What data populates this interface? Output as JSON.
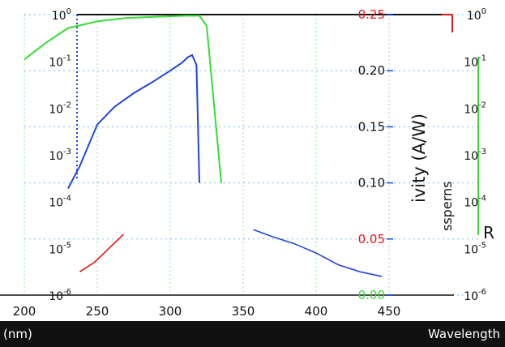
{
  "colors": {
    "responsivity": "#2244dd",
    "green": "#33dd33",
    "red": "#ee1111",
    "blue_axis": "#1144ee",
    "grid_blue": "#77bbee",
    "grid_green": "#88ee88",
    "dark": "#111111"
  },
  "band": {
    "left_text": "(nm)",
    "right_text": "Wavelength"
  },
  "overlay": {
    "responsivity_label": "ivity (A/W)",
    "spectral_fragment": "ssperns",
    "r_fragment": "R"
  },
  "chart_data": [
    {
      "type": "line",
      "xlabel": "Wavelength (nm)",
      "ylabel": "Responsivity (A/W)",
      "xlim": [
        200,
        450
      ],
      "ylim": [
        0.0,
        0.25
      ],
      "x_ticks": [
        "200",
        "250",
        "300",
        "350",
        "400",
        "450"
      ],
      "y_ticks": [
        "0.00",
        "0.05",
        "0.10",
        "0.15",
        "0.20",
        "0.25"
      ],
      "grid": true,
      "series": [
        {
          "color": "#2244dd",
          "x": [
            230,
            238,
            250,
            262,
            275,
            288,
            300,
            308,
            312,
            315,
            318,
            320
          ],
          "y": [
            0.095,
            0.115,
            0.152,
            0.168,
            0.18,
            0.19,
            0.2,
            0.207,
            0.212,
            0.214,
            0.205,
            0.1
          ]
        },
        {
          "color": "#33dd33",
          "x": [
            200,
            215,
            230,
            250,
            270,
            290,
            310,
            320,
            325,
            335
          ],
          "y": [
            0.21,
            0.225,
            0.238,
            0.244,
            0.247,
            0.248,
            0.249,
            0.249,
            0.24,
            0.1
          ]
        }
      ]
    },
    {
      "type": "line",
      "xlabel": "Wavelength (nm)",
      "ylabel": "R",
      "scale": "log",
      "ylim_exponents": [
        -6,
        0
      ],
      "y_ticks": [
        "10^0",
        "10^-1",
        "10^-2",
        "10^-3",
        "10^-4",
        "10^-5",
        "10^-6"
      ],
      "grid": true,
      "series": [
        {
          "color": "#2244dd",
          "x": [
            357,
            370,
            385,
            400,
            415,
            430,
            445
          ],
          "y_exp": [
            -4.6,
            -4.75,
            -4.9,
            -5.1,
            -5.35,
            -5.5,
            -5.6
          ]
        },
        {
          "color": "#ee1111",
          "x": [
            238,
            248,
            258,
            268
          ],
          "y_exp": [
            -5.5,
            -5.3,
            -5.0,
            -4.7
          ]
        }
      ]
    }
  ]
}
